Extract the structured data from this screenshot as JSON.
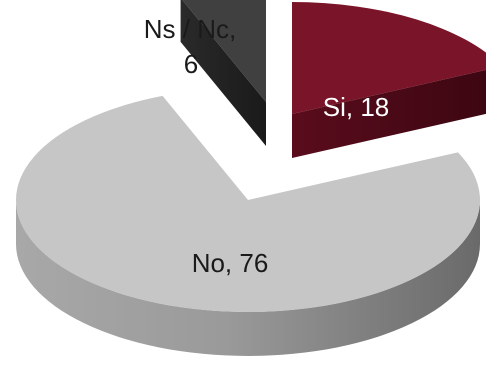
{
  "chart_data": {
    "type": "pie",
    "style": "3d-exploded",
    "title": "",
    "slices": [
      {
        "label": "Si",
        "value": 18,
        "display": "Si, 18",
        "color": "#7a1428"
      },
      {
        "label": "No",
        "value": 76,
        "display": "No, 76",
        "color": "#c6c6c6"
      },
      {
        "label": "Ns / Nc",
        "value": 6,
        "display_lines": [
          "Ns / Nc,",
          "6"
        ],
        "color": "#404040"
      }
    ],
    "legend": "none",
    "label_color": "#1a1a1a",
    "label_color_on_dark": "#ffffff"
  }
}
